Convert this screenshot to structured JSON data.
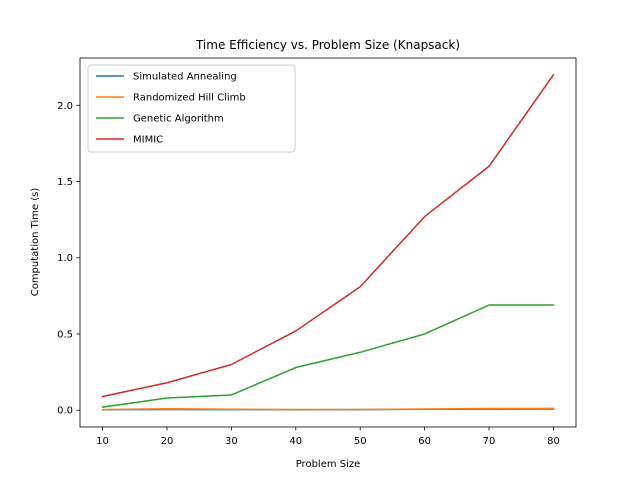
{
  "chart_data": {
    "type": "line",
    "title": "Time Efficiency vs. Problem Size (Knapsack)",
    "xlabel": "Problem Size",
    "ylabel": "Computation Time (s)",
    "x": [
      10,
      20,
      30,
      40,
      50,
      60,
      70,
      80
    ],
    "xticks": [
      "10",
      "20",
      "30",
      "40",
      "50",
      "60",
      "70",
      "80"
    ],
    "yticks": [
      "0.0",
      "0.5",
      "1.0",
      "1.5",
      "2.0"
    ],
    "xlim": [
      6.5,
      83.5
    ],
    "ylim": [
      -0.11,
      2.31
    ],
    "grid": false,
    "legend_position": "upper-left",
    "series": [
      {
        "name": "Simulated Annealing",
        "color": "#1f77b4",
        "values": [
          0.003,
          0.005,
          0.004,
          0.003,
          0.004,
          0.006,
          0.007,
          0.008
        ]
      },
      {
        "name": "Randomized Hill Climb",
        "color": "#ff7f0e",
        "values": [
          0.004,
          0.01,
          0.006,
          0.005,
          0.005,
          0.008,
          0.011,
          0.012
        ]
      },
      {
        "name": "Genetic Algorithm",
        "color": "#2ca02c",
        "values": [
          0.02,
          0.08,
          0.1,
          0.28,
          0.38,
          0.5,
          0.69,
          0.69
        ]
      },
      {
        "name": "MIMIC",
        "color": "#d62728",
        "values": [
          0.09,
          0.18,
          0.3,
          0.52,
          0.81,
          1.27,
          1.6,
          2.2
        ]
      }
    ]
  }
}
